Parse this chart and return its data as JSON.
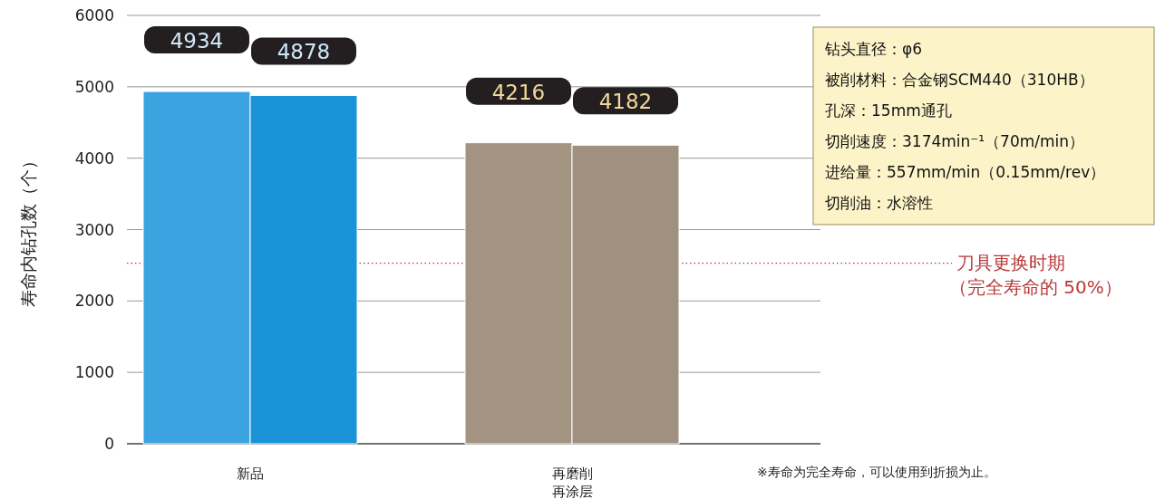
{
  "chart_data": {
    "type": "bar",
    "ylabel": "寿命内钻孔数（个）",
    "categories": [
      "新品",
      "再磨削再涂层"
    ],
    "series": [
      {
        "colors": [
          "#3aa3e0",
          "#a39482"
        ],
        "values": [
          4934,
          4216
        ]
      },
      {
        "colors": [
          "#1a93d8",
          "#a09080"
        ],
        "values": [
          4878,
          4182
        ]
      }
    ],
    "data_labels": true,
    "ylim": [
      0,
      6000
    ],
    "yticks": [
      0,
      1000,
      2000,
      3000,
      4000,
      5000,
      6000
    ],
    "grid": "y",
    "ref_lines": [
      {
        "axis": "y",
        "value": 2530,
        "label": "刀具更换时期",
        "color": "#b83a3a",
        "line_style": "dotted"
      }
    ],
    "annotations": [
      "钻头直径：φ6",
      "被削材料：合金钢SCM440（310HB）",
      "孔深：15mm通孔",
      "切削速度：3174min⁻¹（70m/min）",
      "进给量：557mm/min（0.15mm/rev）",
      "切削油：水溶性",
      "（完全寿命的 50%）",
      "※寿命为完全寿命，可以使用到折损为止。"
    ]
  }
}
